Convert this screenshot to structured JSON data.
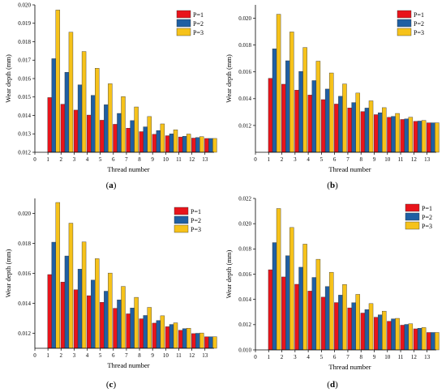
{
  "figure": {
    "panels": [
      {
        "label_open": "(",
        "label_letter": "a",
        "label_close": ")"
      },
      {
        "label_open": "(",
        "label_letter": "b",
        "label_close": ")"
      },
      {
        "label_open": "(",
        "label_letter": "c",
        "label_close": ")"
      },
      {
        "label_open": "(",
        "label_letter": "d",
        "label_close": ")"
      }
    ]
  },
  "colors": {
    "P=1": "#e8141b",
    "P=2": "#1f5fa3",
    "P=3": "#f6c21a"
  },
  "chart_data": [
    {
      "type": "bar",
      "panel": "a",
      "xlabel": "Thread number",
      "ylabel": "Wear depth (mm)",
      "x_ticks": [
        0,
        1,
        2,
        3,
        4,
        5,
        6,
        7,
        8,
        9,
        10,
        11,
        12,
        13
      ],
      "categories": [
        1,
        2,
        3,
        4,
        5,
        6,
        7,
        8,
        9,
        10,
        11,
        12,
        13
      ],
      "ylim": [
        0.012,
        0.02
      ],
      "y_ticks": [
        0.012,
        0.013,
        0.014,
        0.015,
        0.016,
        0.017,
        0.018,
        0.019,
        0.02
      ],
      "y_tick_labels": [
        "0.012",
        "0.013",
        "0.014",
        "0.015",
        "0.016",
        "0.017",
        "0.018",
        "0.019",
        "0.020"
      ],
      "legend": "top-right",
      "series": [
        {
          "name": "P=1",
          "values": [
            0.01497,
            0.01461,
            0.01429,
            0.01402,
            0.01374,
            0.01352,
            0.01331,
            0.01312,
            0.01298,
            0.0129,
            0.01283,
            0.01277,
            0.01275
          ]
        },
        {
          "name": "P=2",
          "values": [
            0.01708,
            0.01634,
            0.01566,
            0.01509,
            0.01458,
            0.01411,
            0.01372,
            0.01338,
            0.01318,
            0.013,
            0.01287,
            0.0128,
            0.01275
          ]
        },
        {
          "name": "P=3",
          "values": [
            0.01972,
            0.01852,
            0.01747,
            0.01656,
            0.01572,
            0.01502,
            0.01446,
            0.01394,
            0.01354,
            0.01322,
            0.01299,
            0.01285,
            0.01275
          ]
        }
      ]
    },
    {
      "type": "bar",
      "panel": "b",
      "xlabel": "Thread number",
      "ylabel": "Wear depth (mm)",
      "x_ticks": [
        0,
        1,
        2,
        3,
        4,
        5,
        6,
        7,
        8,
        9,
        10,
        11,
        12,
        13
      ],
      "categories": [
        1,
        2,
        3,
        4,
        5,
        6,
        7,
        8,
        9,
        10,
        11,
        12,
        13
      ],
      "ylim": [
        0.01,
        0.021
      ],
      "y_ticks": [
        0.012,
        0.014,
        0.016,
        0.018,
        0.02
      ],
      "y_tick_labels": [
        "0.012",
        "0.014",
        "0.016",
        "0.018",
        "0.020"
      ],
      "legend": "top-right",
      "series": [
        {
          "name": "P=1",
          "values": [
            0.01552,
            0.01508,
            0.01464,
            0.01427,
            0.01393,
            0.0136,
            0.01331,
            0.01304,
            0.01281,
            0.01261,
            0.01245,
            0.01231,
            0.0122
          ]
        },
        {
          "name": "P=2",
          "values": [
            0.01772,
            0.01683,
            0.01603,
            0.01535,
            0.01472,
            0.01418,
            0.01371,
            0.0133,
            0.01295,
            0.01268,
            0.01249,
            0.01233,
            0.0122
          ]
        },
        {
          "name": "P=3",
          "values": [
            0.0203,
            0.01898,
            0.01782,
            0.0168,
            0.01592,
            0.0151,
            0.01442,
            0.01384,
            0.01333,
            0.0129,
            0.01262,
            0.01238,
            0.0122
          ]
        }
      ]
    },
    {
      "type": "bar",
      "panel": "c",
      "xlabel": "Thread number",
      "ylabel": "Wear depth (mm)",
      "x_ticks": [
        0,
        1,
        2,
        3,
        4,
        5,
        6,
        7,
        8,
        9,
        10,
        11,
        12,
        13
      ],
      "categories": [
        1,
        2,
        3,
        4,
        5,
        6,
        7,
        8,
        9,
        10,
        11,
        12,
        13
      ],
      "ylim": [
        0.011,
        0.021
      ],
      "y_ticks": [
        0.012,
        0.014,
        0.016,
        0.018,
        0.02
      ],
      "y_tick_labels": [
        "0.012",
        "0.014",
        "0.016",
        "0.018",
        "0.020"
      ],
      "legend": "top-right",
      "series": [
        {
          "name": "P=1",
          "values": [
            0.01592,
            0.01542,
            0.01491,
            0.01451,
            0.01407,
            0.01367,
            0.0133,
            0.01297,
            0.01268,
            0.01244,
            0.0122,
            0.01198,
            0.01177
          ]
        },
        {
          "name": "P=2",
          "values": [
            0.01808,
            0.01716,
            0.01628,
            0.01555,
            0.01481,
            0.01423,
            0.01369,
            0.01319,
            0.01285,
            0.01259,
            0.01231,
            0.012,
            0.01177
          ]
        },
        {
          "name": "P=3",
          "values": [
            0.02073,
            0.01935,
            0.0181,
            0.01698,
            0.01602,
            0.01513,
            0.0144,
            0.01373,
            0.01317,
            0.0127,
            0.01234,
            0.01202,
            0.01177
          ]
        }
      ]
    },
    {
      "type": "bar",
      "panel": "d",
      "xlabel": "Thread number",
      "ylabel": "Wear depth (mm)",
      "x_ticks": [
        0,
        1,
        2,
        3,
        4,
        5,
        6,
        7,
        8,
        9,
        10,
        11,
        12,
        13
      ],
      "categories": [
        1,
        2,
        3,
        4,
        5,
        6,
        7,
        8,
        9,
        10,
        11,
        12,
        13
      ],
      "ylim": [
        0.01,
        0.022
      ],
      "y_ticks": [
        0.01,
        0.012,
        0.014,
        0.016,
        0.018,
        0.02,
        0.022
      ],
      "y_tick_labels": [
        "0.010",
        "0.012",
        "0.014",
        "0.016",
        "0.018",
        "0.020",
        "0.022"
      ],
      "legend": "top-right",
      "series": [
        {
          "name": "P=1",
          "values": [
            0.01635,
            0.01578,
            0.0152,
            0.01466,
            0.01418,
            0.01375,
            0.01333,
            0.01292,
            0.01259,
            0.01227,
            0.01196,
            0.01167,
            0.01138
          ]
        },
        {
          "name": "P=2",
          "values": [
            0.0185,
            0.01746,
            0.01655,
            0.01574,
            0.01502,
            0.01434,
            0.01374,
            0.01319,
            0.01278,
            0.01246,
            0.01202,
            0.01172,
            0.01138
          ]
        },
        {
          "name": "P=3",
          "values": [
            0.0212,
            0.0197,
            0.01838,
            0.01718,
            0.01615,
            0.01518,
            0.0144,
            0.01367,
            0.01307,
            0.0125,
            0.01207,
            0.01177,
            0.01138
          ]
        }
      ]
    }
  ]
}
